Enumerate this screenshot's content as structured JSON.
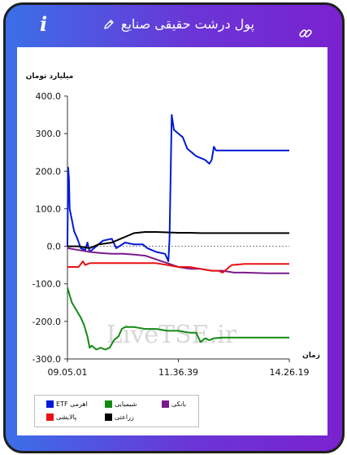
{
  "header": {
    "title": "پول درشت حقیقی صنایع",
    "info_icon": "i",
    "icons": [
      "info-icon",
      "pencil-icon",
      "link-icon"
    ]
  },
  "colors": {
    "etf": "#0019d6",
    "chemical": "#138a13",
    "bank": "#7a1a8c",
    "refinery": "#e81212",
    "agriculture": "#000000"
  },
  "chart_data": {
    "type": "line",
    "ylabel": "میلیارد تومان",
    "xlabel": "زمان",
    "ylim": [
      -300,
      400
    ],
    "yticks": [
      "400.0",
      "300.0",
      "200.0",
      "100.0",
      "0.0",
      "-100.0",
      "-200.0",
      "-300.0"
    ],
    "ytick_values": [
      400,
      300,
      200,
      100,
      0,
      -100,
      -200,
      -300
    ],
    "xticks": [
      "09.05.01",
      "11.36.39",
      "14.26.19"
    ],
    "xtick_values": [
      0,
      0.5,
      1
    ],
    "grid": false,
    "legend_position": "bottom-left",
    "watermark": "LiveTSE.ir",
    "series": [
      {
        "name": "اهرمی ETF",
        "color_key": "etf",
        "points": [
          [
            0,
            0
          ],
          [
            0.003,
            210
          ],
          [
            0.007,
            180
          ],
          [
            0.01,
            100
          ],
          [
            0.02,
            70
          ],
          [
            0.03,
            40
          ],
          [
            0.045,
            20
          ],
          [
            0.06,
            -5
          ],
          [
            0.08,
            -10
          ],
          [
            0.09,
            10
          ],
          [
            0.1,
            -15
          ],
          [
            0.12,
            -5
          ],
          [
            0.14,
            5
          ],
          [
            0.16,
            15
          ],
          [
            0.2,
            20
          ],
          [
            0.22,
            -5
          ],
          [
            0.26,
            10
          ],
          [
            0.3,
            5
          ],
          [
            0.34,
            5
          ],
          [
            0.36,
            -5
          ],
          [
            0.38,
            -10
          ],
          [
            0.4,
            -15
          ],
          [
            0.44,
            -20
          ],
          [
            0.455,
            -40
          ],
          [
            0.46,
            20
          ],
          [
            0.47,
            350
          ],
          [
            0.48,
            310
          ],
          [
            0.5,
            300
          ],
          [
            0.52,
            290
          ],
          [
            0.54,
            260
          ],
          [
            0.56,
            250
          ],
          [
            0.58,
            240
          ],
          [
            0.6,
            235
          ],
          [
            0.62,
            230
          ],
          [
            0.64,
            220
          ],
          [
            0.65,
            230
          ],
          [
            0.66,
            265
          ],
          [
            0.67,
            255
          ],
          [
            0.7,
            255
          ],
          [
            0.8,
            255
          ],
          [
            0.9,
            255
          ],
          [
            1,
            255
          ]
        ]
      },
      {
        "name": "شیمیایی",
        "color_key": "chemical",
        "points": [
          [
            0,
            -110
          ],
          [
            0.01,
            -130
          ],
          [
            0.02,
            -150
          ],
          [
            0.04,
            -170
          ],
          [
            0.06,
            -190
          ],
          [
            0.075,
            -210
          ],
          [
            0.09,
            -240
          ],
          [
            0.1,
            -270
          ],
          [
            0.11,
            -265
          ],
          [
            0.13,
            -275
          ],
          [
            0.15,
            -270
          ],
          [
            0.17,
            -275
          ],
          [
            0.19,
            -270
          ],
          [
            0.21,
            -250
          ],
          [
            0.23,
            -240
          ],
          [
            0.245,
            -220
          ],
          [
            0.26,
            -215
          ],
          [
            0.3,
            -215
          ],
          [
            0.35,
            -220
          ],
          [
            0.4,
            -220
          ],
          [
            0.45,
            -225
          ],
          [
            0.5,
            -225
          ],
          [
            0.55,
            -230
          ],
          [
            0.58,
            -230
          ],
          [
            0.6,
            -255
          ],
          [
            0.62,
            -245
          ],
          [
            0.64,
            -250
          ],
          [
            0.66,
            -245
          ],
          [
            0.7,
            -243
          ],
          [
            0.8,
            -243
          ],
          [
            0.9,
            -243
          ],
          [
            1,
            -243
          ]
        ]
      },
      {
        "name": "بانکی",
        "color_key": "bank",
        "points": [
          [
            0,
            -5
          ],
          [
            0.05,
            -10
          ],
          [
            0.1,
            -15
          ],
          [
            0.15,
            -18
          ],
          [
            0.2,
            -20
          ],
          [
            0.25,
            -20
          ],
          [
            0.3,
            -22
          ],
          [
            0.35,
            -25
          ],
          [
            0.4,
            -35
          ],
          [
            0.45,
            -45
          ],
          [
            0.5,
            -55
          ],
          [
            0.55,
            -60
          ],
          [
            0.6,
            -60
          ],
          [
            0.65,
            -65
          ],
          [
            0.7,
            -65
          ],
          [
            0.75,
            -70
          ],
          [
            0.8,
            -70
          ],
          [
            0.9,
            -72
          ],
          [
            1,
            -72
          ]
        ]
      },
      {
        "name": "پالایشی",
        "color_key": "refinery",
        "points": [
          [
            0,
            -55
          ],
          [
            0.05,
            -55
          ],
          [
            0.07,
            -40
          ],
          [
            0.08,
            -50
          ],
          [
            0.1,
            -45
          ],
          [
            0.2,
            -45
          ],
          [
            0.3,
            -45
          ],
          [
            0.4,
            -45
          ],
          [
            0.45,
            -50
          ],
          [
            0.5,
            -55
          ],
          [
            0.55,
            -55
          ],
          [
            0.6,
            -60
          ],
          [
            0.65,
            -65
          ],
          [
            0.68,
            -65
          ],
          [
            0.7,
            -70
          ],
          [
            0.74,
            -50
          ],
          [
            0.8,
            -47
          ],
          [
            0.9,
            -47
          ],
          [
            1,
            -47
          ]
        ]
      },
      {
        "name": "زراعتی",
        "color_key": "agriculture",
        "points": [
          [
            0,
            0
          ],
          [
            0.05,
            0
          ],
          [
            0.1,
            -5
          ],
          [
            0.14,
            5
          ],
          [
            0.2,
            10
          ],
          [
            0.24,
            20
          ],
          [
            0.26,
            25
          ],
          [
            0.3,
            35
          ],
          [
            0.35,
            38
          ],
          [
            0.4,
            38
          ],
          [
            0.45,
            37
          ],
          [
            0.5,
            36
          ],
          [
            0.55,
            36
          ],
          [
            0.6,
            35
          ],
          [
            0.7,
            35
          ],
          [
            0.8,
            35
          ],
          [
            0.9,
            35
          ],
          [
            1,
            35
          ]
        ]
      }
    ]
  },
  "legend": {
    "items": [
      {
        "label": "اهرمی ETF",
        "color_key": "etf"
      },
      {
        "label": "شیمیایی",
        "color_key": "chemical"
      },
      {
        "label": "بانکی",
        "color_key": "bank"
      },
      {
        "label": "پالایشی",
        "color_key": "refinery"
      },
      {
        "label": "زراعتی",
        "color_key": "agriculture"
      }
    ]
  }
}
